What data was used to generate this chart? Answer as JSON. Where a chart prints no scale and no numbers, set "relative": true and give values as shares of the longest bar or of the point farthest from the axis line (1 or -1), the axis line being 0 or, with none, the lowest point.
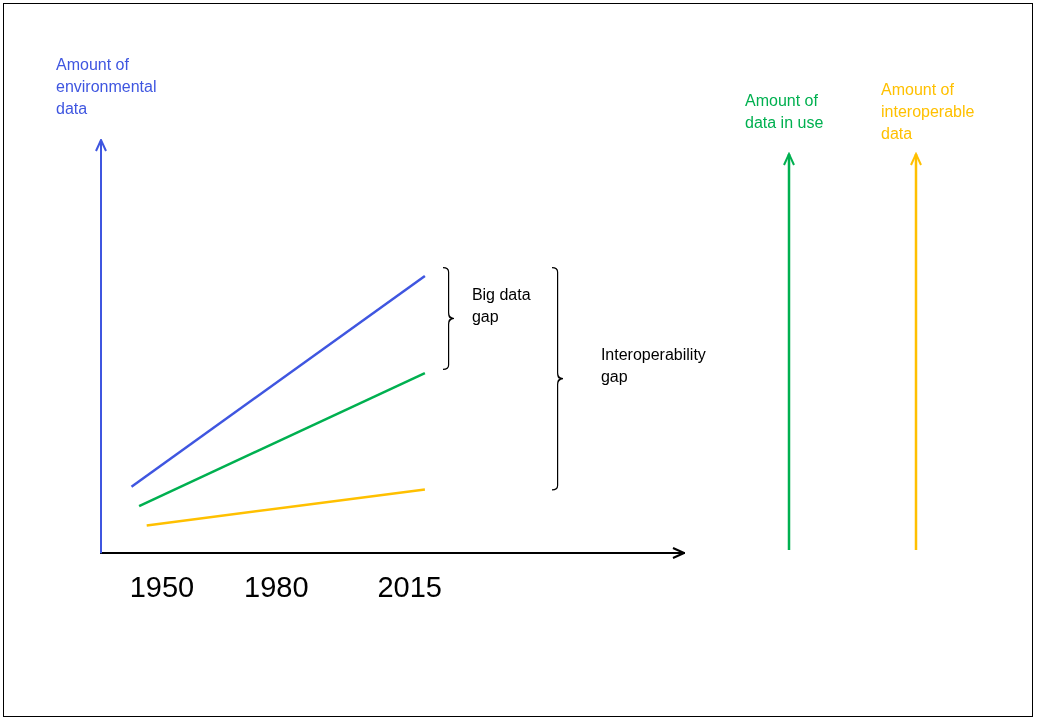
{
  "chart_data": {
    "type": "line",
    "relative": true,
    "xlim": [
      1934,
      2087
    ],
    "xticks": [
      1950,
      1980,
      2015
    ],
    "grid": false,
    "legend": "right",
    "marker": "none",
    "line_style": "solid",
    "annotations": [
      "Big data gap",
      "Interoperability gap"
    ],
    "series": [
      {
        "name": "Amount of environmental data",
        "color": "#3f56e0",
        "x": [
          1942,
          2019
        ],
        "values": [
          0.24,
          1
        ]
      },
      {
        "name": "Amount of data in use",
        "color": "#00b050",
        "x": [
          1944,
          2019
        ],
        "values": [
          0.17,
          0.65
        ]
      },
      {
        "name": "Amount of interoperable data",
        "color": "#ffc000",
        "x": [
          1946,
          2019
        ],
        "values": [
          0.1,
          0.23
        ]
      }
    ]
  }
}
